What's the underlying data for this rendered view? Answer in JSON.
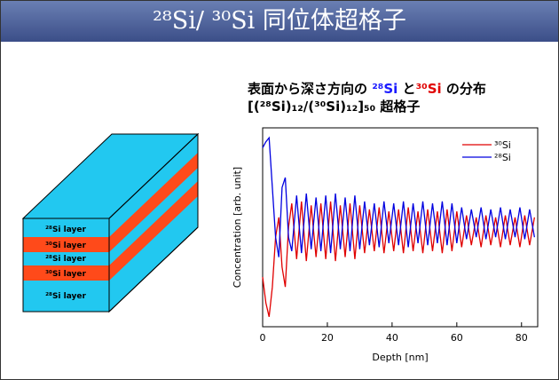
{
  "header": {
    "title": "²⁸Si/ ³⁰Si 同位体超格子"
  },
  "diagram": {
    "layers": [
      "²⁸Si layer",
      "³⁰Si layer",
      "²⁸Si layer",
      "³⁰Si layer",
      "²⁸Si layer"
    ]
  },
  "chart_data": {
    "type": "line",
    "title_parts": [
      "表面から深さ方向の ",
      "²⁸Si",
      " と",
      "³⁰Si",
      " の分布"
    ],
    "subtitle": "[(²⁸Si)₁₂/(³⁰Si)₁₂]₅₀ 超格子",
    "xlabel": "Depth [nm]",
    "ylabel": "Concentration [arb. unit]",
    "xlim": [
      0,
      85
    ],
    "xticks": [
      0,
      20,
      40,
      60,
      80
    ],
    "ylim": [
      0,
      1
    ],
    "legend": "upper right",
    "x": [
      0,
      1,
      2,
      3,
      4,
      5,
      6,
      7,
      8,
      9,
      10.5,
      12,
      13.5,
      15,
      16.5,
      18,
      19.5,
      21,
      22.5,
      24,
      25.5,
      27,
      28.5,
      30,
      31.5,
      33,
      34.5,
      36,
      37.5,
      39,
      40.5,
      42,
      43.5,
      45,
      46.5,
      48,
      49.5,
      51,
      52.5,
      54,
      55.5,
      57,
      58.5,
      60,
      61.5,
      63,
      64.5,
      66,
      67.5,
      69,
      70.5,
      72,
      73.5,
      75,
      76.5,
      78,
      79.5,
      81,
      82.5,
      84
    ],
    "series": [
      {
        "name": "³⁰Si",
        "color": "#e00000",
        "values": [
          0.25,
          0.12,
          0.05,
          0.2,
          0.45,
          0.55,
          0.3,
          0.2,
          0.5,
          0.62,
          0.34,
          0.63,
          0.33,
          0.61,
          0.35,
          0.62,
          0.34,
          0.63,
          0.33,
          0.61,
          0.35,
          0.62,
          0.34,
          0.61,
          0.37,
          0.59,
          0.38,
          0.6,
          0.37,
          0.58,
          0.38,
          0.59,
          0.37,
          0.6,
          0.38,
          0.58,
          0.37,
          0.59,
          0.38,
          0.58,
          0.37,
          0.59,
          0.38,
          0.58,
          0.4,
          0.56,
          0.41,
          0.55,
          0.4,
          0.56,
          0.41,
          0.55,
          0.4,
          0.56,
          0.41,
          0.55,
          0.4,
          0.56,
          0.41,
          0.55
        ]
      },
      {
        "name": "²⁸Si",
        "color": "#0000e0",
        "values": [
          0.9,
          0.93,
          0.95,
          0.7,
          0.45,
          0.35,
          0.7,
          0.75,
          0.45,
          0.38,
          0.66,
          0.37,
          0.67,
          0.39,
          0.65,
          0.38,
          0.66,
          0.37,
          0.67,
          0.39,
          0.65,
          0.38,
          0.66,
          0.39,
          0.63,
          0.41,
          0.62,
          0.4,
          0.63,
          0.42,
          0.62,
          0.41,
          0.63,
          0.4,
          0.62,
          0.42,
          0.63,
          0.41,
          0.62,
          0.42,
          0.63,
          0.41,
          0.62,
          0.42,
          0.6,
          0.44,
          0.59,
          0.45,
          0.6,
          0.44,
          0.59,
          0.45,
          0.6,
          0.44,
          0.59,
          0.45,
          0.6,
          0.44,
          0.59,
          0.45
        ]
      }
    ]
  }
}
